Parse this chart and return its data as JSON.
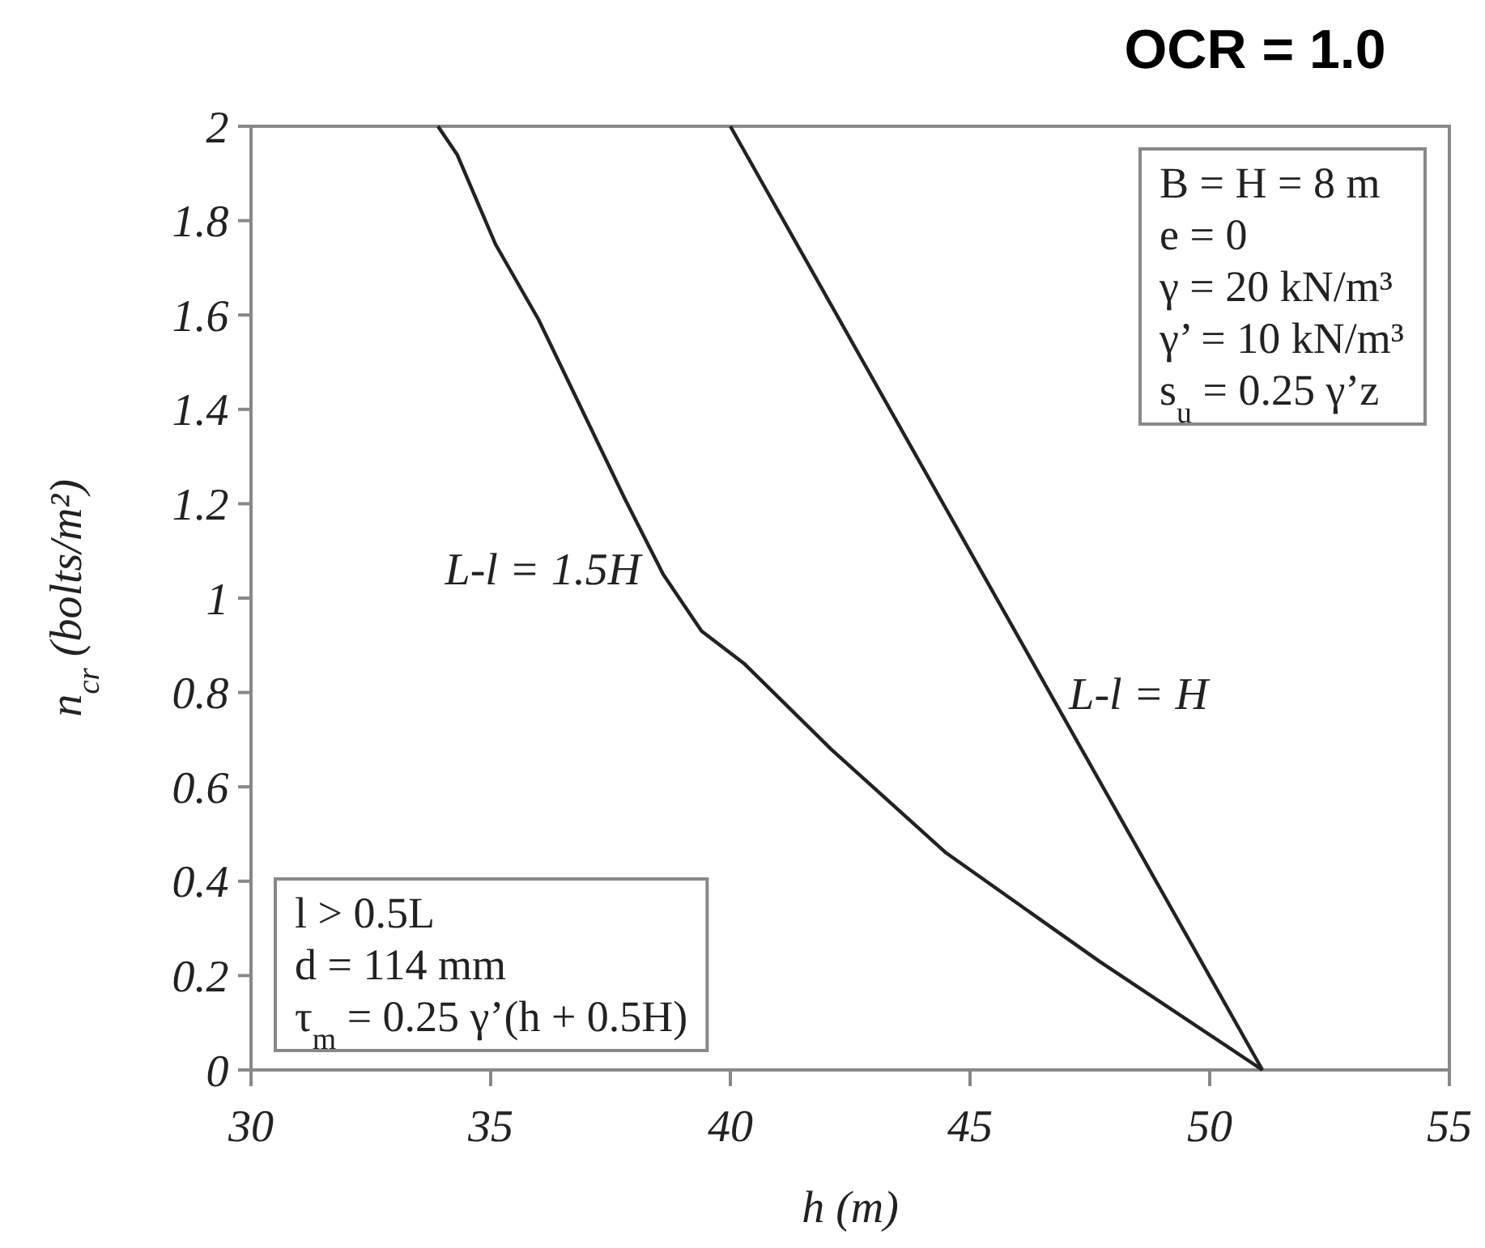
{
  "chart_data": {
    "type": "line",
    "title": "OCR = 1.0",
    "xlabel": "h (m)",
    "ylabel": "n$_{cr}$ (bolts/m²)",
    "series": [
      {
        "name": "L-l = 1.5H",
        "color": "#222222",
        "x": [
          33.9,
          34.3,
          35.1,
          36.0,
          36.9,
          37.8,
          38.6,
          39.4,
          40.3,
          42.1,
          44.5,
          47.7,
          51.1
        ],
        "values": [
          2.0,
          1.94,
          1.75,
          1.59,
          1.4,
          1.21,
          1.05,
          0.93,
          0.86,
          0.68,
          0.46,
          0.23,
          0
        ]
      },
      {
        "name": "L-l = H",
        "color": "#222222",
        "x": [
          40.0,
          51.1
        ],
        "values": [
          2.0,
          0
        ]
      }
    ],
    "annotations": [
      "B = H = 8 m\ne = 0\nγ = 20 kN/m³\nγ’ = 10 kN/m³\ns$_{u}$ = 0.25 γ’z",
      "l > 0.5L\nd = 114 mm\nτ$_{m}$ = 0.25 γ’(h + 0.5H)"
    ],
    "xlim": [
      30,
      55
    ],
    "xticks": [
      30,
      35,
      40,
      45,
      50,
      55
    ],
    "ylim": [
      0,
      2
    ],
    "yticks": [
      0,
      0.2,
      0.4,
      0.6,
      0.8,
      1,
      1.2,
      1.4,
      1.6,
      1.8,
      2
    ],
    "grid": false,
    "marker": "none",
    "line_style": "solid"
  }
}
